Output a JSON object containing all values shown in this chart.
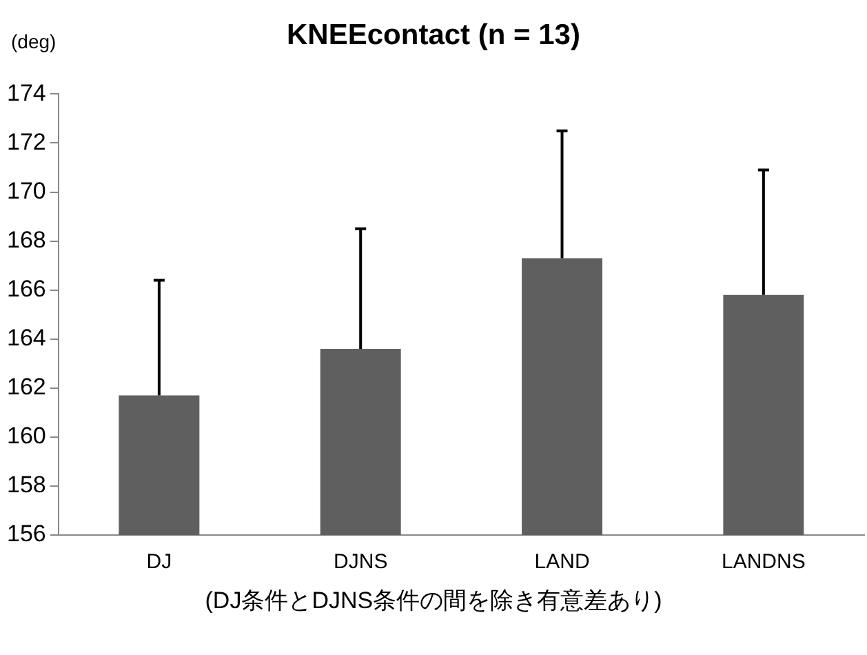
{
  "chart_data": {
    "type": "bar",
    "title": "KNEEcontact (n = 13)",
    "ylabel": "(deg)",
    "categories": [
      "DJ",
      "DJNS",
      "LAND",
      "LANDNS"
    ],
    "values": [
      161.7,
      163.6,
      167.3,
      165.8
    ],
    "color": "#5f5f5f",
    "errors": [
      [
        161.7,
        166.4
      ],
      [
        163.6,
        168.5
      ],
      [
        167.3,
        172.5
      ],
      [
        165.8,
        170.9
      ]
    ],
    "ylim": [
      156,
      174
    ],
    "yticks": [
      156,
      158,
      160,
      162,
      164,
      166,
      168,
      170,
      172,
      174
    ],
    "grid": false,
    "annotations": [
      "(DJ条件とDJNS条件の間を除き有意差あり)"
    ]
  }
}
